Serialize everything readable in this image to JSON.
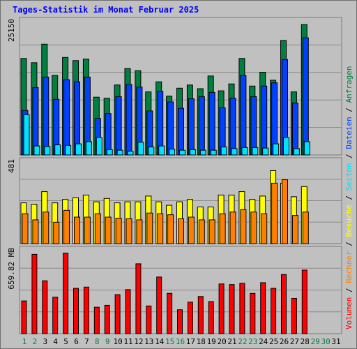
{
  "chart_data": {
    "title": "Tages-Statistik im Monat Februar 2025",
    "type": "bar",
    "days": [
      "1",
      "2",
      "3",
      "4",
      "5",
      "6",
      "7",
      "8",
      "9",
      "10",
      "11",
      "12",
      "13",
      "14",
      "15",
      "16",
      "17",
      "18",
      "19",
      "20",
      "21",
      "22",
      "23",
      "24",
      "25",
      "26",
      "27",
      "28",
      "29",
      "30",
      "31"
    ],
    "weekend_days": [
      "1",
      "2",
      "8",
      "9",
      "15",
      "16",
      "22",
      "23",
      "29",
      "30"
    ],
    "panels": [
      {
        "id": "hits",
        "ymax_label": "25150",
        "ymax": 25150,
        "series": [
          {
            "name": "Anfragen",
            "color": "#008040",
            "values": [
              18200,
              17400,
              20900,
              15000,
              18400,
              17800,
              18100,
              10900,
              10700,
              13200,
              16300,
              15900,
              11900,
              13800,
              11100,
              12600,
              13200,
              12500,
              14900,
              12100,
              13400,
              18200,
              13000,
              15600,
              14100,
              21600,
              11900,
              24600,
              null,
              null,
              null
            ]
          },
          {
            "name": "Dateien",
            "color": "#0040ff",
            "values": [
              8400,
              12700,
              14700,
              10500,
              14200,
              13800,
              14700,
              6900,
              7800,
              11000,
              13300,
              12800,
              8300,
              12000,
              10000,
              8800,
              10600,
              11000,
              11800,
              8900,
              10700,
              15000,
              11000,
              13000,
              13600,
              18000,
              9800,
              22100,
              null,
              null,
              null
            ]
          },
          {
            "name": "Seiten",
            "color": "#00e0ff",
            "values": [
              7600,
              1700,
              1600,
              1900,
              1800,
              2100,
              2500,
              3300,
              1000,
              900,
              700,
              2400,
              1500,
              1700,
              1100,
              900,
              1000,
              900,
              900,
              1500,
              1200,
              1400,
              1400,
              1300,
              2100,
              3300,
              1200,
              2500,
              null,
              null,
              null
            ]
          }
        ]
      },
      {
        "id": "visits",
        "ymax_label": "481",
        "ymax": 481,
        "series": [
          {
            "name": "Besuche",
            "color": "#ffff00",
            "values": [
              240,
              232,
              306,
              240,
              260,
              270,
              286,
              246,
              266,
              240,
              246,
              246,
              280,
              246,
              226,
              246,
              260,
              216,
              216,
              286,
              286,
              306,
              260,
              280,
              430,
              356,
              276,
              336,
              null,
              null,
              null
            ]
          },
          {
            "name": "Rechner",
            "color": "#ff8000",
            "values": [
              176,
              140,
              186,
              126,
              196,
              156,
              156,
              176,
              156,
              150,
              146,
              140,
              180,
              176,
              170,
              146,
              156,
              140,
              140,
              176,
              186,
              200,
              186,
              176,
              356,
              376,
              166,
              186,
              null,
              null,
              null
            ]
          }
        ]
      },
      {
        "id": "volume",
        "ymax_label": "659.82 MB",
        "ymax": 659.82,
        "series": [
          {
            "name": "Volumen",
            "color": "#ff0000",
            "values": [
              260,
              630,
              420,
              290,
              640,
              360,
              370,
              210,
              225,
              310,
              350,
              555,
              220,
              450,
              320,
              190,
              250,
              295,
              255,
              395,
              390,
              400,
              320,
              405,
              360,
              470,
              280,
              505,
              null,
              null,
              null
            ]
          }
        ]
      }
    ],
    "legend_separator": "/",
    "legend_order": [
      "Volumen",
      "Rechner",
      "Besuche",
      "Seiten",
      "Dateien",
      "Anfragen"
    ]
  }
}
